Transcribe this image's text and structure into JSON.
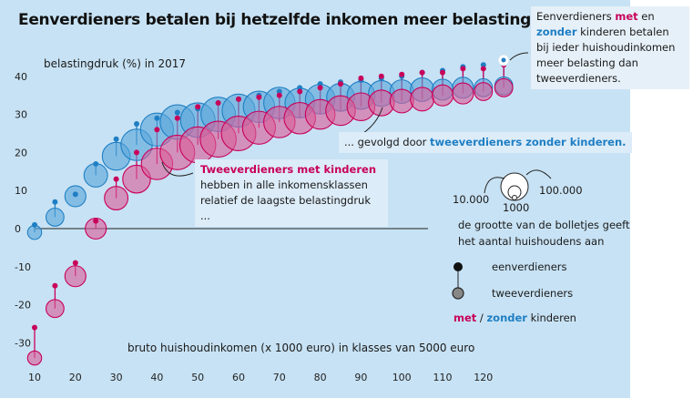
{
  "title": "Eenverdieners betalen bij hetzelfde inkomen meer belasting ...",
  "chart_data": {
    "type": "scatter",
    "ylabel": "belastingdruk (%) in 2017",
    "xlabel": "bruto huishoudinkomen (x 1000 euro) in klasses van 5000 euro",
    "xlim": [
      10,
      130
    ],
    "ylim": [
      -35,
      43
    ],
    "x_ticks": [
      "10",
      "20",
      "30",
      "40",
      "50",
      "60",
      "70",
      "80",
      "90",
      "100",
      "110",
      "120"
    ],
    "y_ticks": [
      "40",
      "30",
      "20",
      "10",
      "0",
      "-10",
      "-20",
      "-30"
    ],
    "x": [
      10,
      15,
      20,
      25,
      30,
      35,
      40,
      45,
      50,
      55,
      60,
      65,
      70,
      75,
      80,
      85,
      90,
      95,
      100,
      105,
      110,
      115,
      120,
      125
    ],
    "series": [
      {
        "name": "eenverdieners zonder kinderen",
        "values": [
          1,
          7,
          9,
          17,
          23.5,
          27.5,
          29,
          30.5,
          31.5,
          33,
          34,
          35,
          36,
          37,
          38,
          38.5,
          39,
          39.5,
          40,
          41,
          41.5,
          42.5,
          43,
          45
        ]
      },
      {
        "name": "tweeverdieners zonder kinderen",
        "sizes": [
          1,
          2,
          3,
          4,
          6,
          8,
          9,
          10,
          10,
          10,
          9,
          8,
          8,
          7,
          7,
          6,
          6,
          5,
          4,
          4,
          3,
          3,
          2,
          2
        ],
        "values": [
          -1,
          3,
          8.5,
          14,
          19,
          22,
          26,
          28,
          28.5,
          30,
          31,
          32,
          33,
          33,
          34,
          34.5,
          35,
          35.5,
          36,
          36.5,
          36.5,
          37,
          37,
          37.5
        ]
      },
      {
        "name": "eenverdieners met kinderen",
        "values": [
          -26,
          -15,
          -9,
          2,
          13,
          20,
          26,
          29,
          32,
          33,
          34,
          34.5,
          35,
          36,
          37,
          38,
          39.5,
          40,
          40.5,
          41,
          41,
          42,
          42,
          43
        ]
      },
      {
        "name": "tweeverdieners met kinderen",
        "sizes": [
          1,
          2,
          3,
          3,
          4,
          6,
          8,
          10,
          11,
          11,
          10,
          9,
          8,
          8,
          7,
          7,
          6,
          5,
          4,
          4,
          3,
          3,
          2,
          2
        ],
        "values": [
          -34,
          -21,
          -12.5,
          0,
          8,
          13,
          17,
          20,
          22,
          23.5,
          25,
          26.5,
          28,
          29,
          30,
          31,
          32,
          33,
          33.5,
          34,
          35,
          35.5,
          36,
          37
        ]
      }
    ]
  },
  "annotations": {
    "top": {
      "pre": "Eenverdieners ",
      "met": "met",
      "mid": " en ",
      "zonder": "zonder",
      "post": " kinderen betalen bij ieder huishoudinkomen meer belasting dan tweeverdieners."
    },
    "mid": {
      "pre": "... gevolgd door ",
      "highlight": "tweeverdieners zonder kinderen."
    },
    "low": {
      "highlight": "Tweeverdieners met kinderen",
      "post": "hebben in alle inkomensklassen relatief de laagste belastingdruk ..."
    }
  },
  "legend": {
    "size_left": "10.000",
    "size_bottom": "1000",
    "size_right": "100.000",
    "size_caption_1": "de  grootte van de bolletjes geeft",
    "size_caption_2": "het aantal huishoudens aan",
    "single_earner": "eenverdieners",
    "dual_earner": "tweeverdieners",
    "met": "met",
    "slash": " / ",
    "zonder": "zonder",
    "kinderen": " kinderen"
  },
  "colors": {
    "background": "#c7e2f4",
    "magenta": "#c8005a",
    "magenta_fill": "#d9609a",
    "blue": "#1f7fc4",
    "blue_fill": "#5aa7da"
  }
}
